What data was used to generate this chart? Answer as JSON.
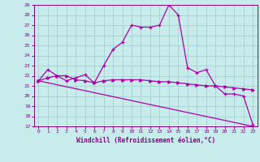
{
  "title": "",
  "xlabel": "Windchill (Refroidissement éolien,°C)",
  "ylabel": "",
  "bg_color": "#c8ecec",
  "grid_color": "#aad4d4",
  "line_color": "#aa00aa",
  "xlim": [
    -0.5,
    23.5
  ],
  "ylim": [
    17,
    29
  ],
  "yticks": [
    17,
    18,
    19,
    20,
    21,
    22,
    23,
    24,
    25,
    26,
    27,
    28,
    29
  ],
  "xticks": [
    0,
    1,
    2,
    3,
    4,
    5,
    6,
    7,
    8,
    9,
    10,
    11,
    12,
    13,
    14,
    15,
    16,
    17,
    18,
    19,
    20,
    21,
    22,
    23
  ],
  "line1_x": [
    0,
    1,
    2,
    3,
    4,
    5,
    6,
    7,
    8,
    9,
    10,
    11,
    12,
    13,
    14,
    15,
    16,
    17,
    18,
    19,
    20,
    21,
    22,
    23
  ],
  "line1_y": [
    21.5,
    22.6,
    22.0,
    21.5,
    21.8,
    22.1,
    21.3,
    23.0,
    24.6,
    25.3,
    27.0,
    26.8,
    26.8,
    27.0,
    29.0,
    28.0,
    22.8,
    22.3,
    22.6,
    21.0,
    20.2,
    20.2,
    20.0,
    17.2
  ],
  "line2_x": [
    0,
    1,
    2,
    3,
    4,
    5,
    6,
    7,
    8,
    9,
    10,
    11,
    12,
    13,
    14,
    15,
    16,
    17,
    18,
    19,
    20,
    21,
    22,
    23
  ],
  "line2_y": [
    21.5,
    21.8,
    22.0,
    22.0,
    21.6,
    21.5,
    21.3,
    21.5,
    21.6,
    21.6,
    21.6,
    21.6,
    21.5,
    21.4,
    21.4,
    21.3,
    21.2,
    21.1,
    21.0,
    21.0,
    20.9,
    20.8,
    20.7,
    20.6
  ],
  "line3_x": [
    0,
    23
  ],
  "line3_y": [
    21.5,
    17.0
  ]
}
